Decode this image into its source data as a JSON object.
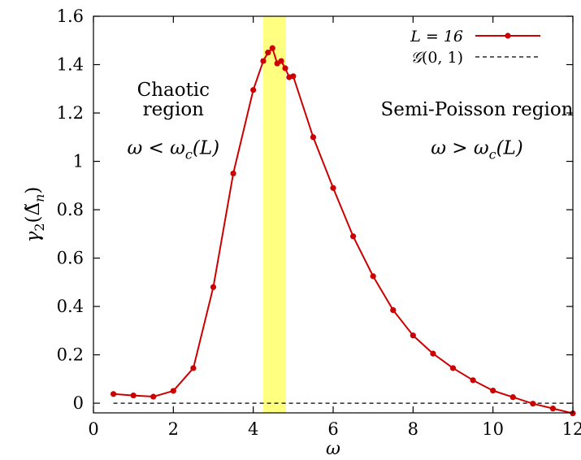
{
  "chart_data": {
    "type": "line",
    "xlabel": "ω",
    "ylabel": "γ₂(Δ̃ₙ)",
    "xlim": [
      0,
      12
    ],
    "ylim": [
      -0.04,
      1.6
    ],
    "xticks": [
      0,
      2,
      4,
      6,
      8,
      10,
      12
    ],
    "yticks": [
      0,
      0.2,
      0.4,
      0.6,
      0.8,
      1,
      1.2,
      1.4,
      1.6
    ],
    "xtick_labels": [
      "0",
      "2",
      "4",
      "6",
      "8",
      "10",
      "12"
    ],
    "ytick_labels": [
      "0",
      "0.2",
      "0.4",
      "0.6",
      "0.8",
      "1",
      "1.2",
      "1.4",
      "1.6"
    ],
    "grid": false,
    "legend_position": "top-right",
    "highlight_band": {
      "x_range": [
        4.25,
        4.82
      ],
      "color": "#ffff80"
    },
    "series": [
      {
        "name": "L = 16",
        "color": "#cc0000",
        "style": "line-points",
        "x": [
          0.5,
          1.0,
          1.5,
          2.0,
          2.5,
          3.0,
          3.5,
          4.0,
          4.25,
          4.37,
          4.48,
          4.6,
          4.7,
          4.8,
          4.9,
          5.0,
          5.5,
          6.0,
          6.5,
          7.0,
          7.5,
          8.0,
          8.5,
          9.0,
          9.5,
          10.0,
          10.5,
          11.0,
          11.5,
          12.0
        ],
        "y": [
          0.038,
          0.032,
          0.027,
          0.051,
          0.145,
          0.48,
          0.95,
          1.295,
          1.415,
          1.45,
          1.468,
          1.405,
          1.415,
          1.385,
          1.348,
          1.352,
          1.1,
          0.89,
          0.69,
          0.525,
          0.385,
          0.28,
          0.205,
          0.145,
          0.095,
          0.052,
          0.025,
          -0.002,
          -0.022,
          -0.042
        ]
      },
      {
        "name": "𝒢(0, 1)",
        "color": "#000000",
        "style": "dashed",
        "x": [
          0.5,
          12
        ],
        "y": [
          0,
          0
        ]
      }
    ],
    "annotations": [
      {
        "text": "Chaotic",
        "x": 2.0,
        "y": 1.27
      },
      {
        "text": "region",
        "x": 2.0,
        "y": 1.19
      },
      {
        "text": "ω < ω_c(L)",
        "x": 2.0,
        "y": 1.03
      },
      {
        "text": "Semi-Poisson region",
        "x": 9.6,
        "y": 1.19
      },
      {
        "text": "ω > ω_c(L)",
        "x": 9.6,
        "y": 1.03
      }
    ]
  }
}
